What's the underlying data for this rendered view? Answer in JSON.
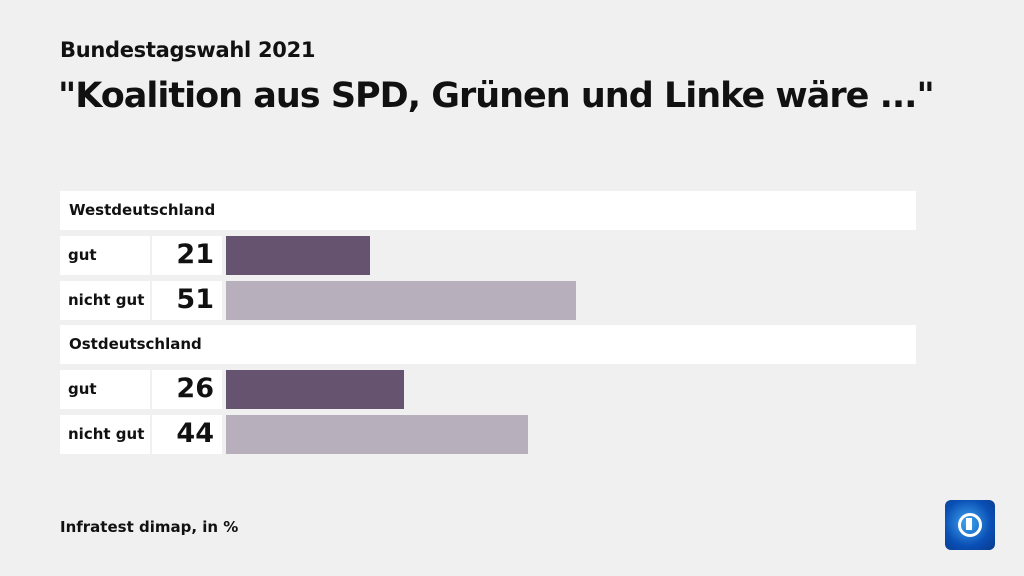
{
  "subtitle": "Bundestagswahl 2021",
  "title": "\"Koalition aus SPD, Grünen und Linke wäre ...\"",
  "source": "Infratest dimap, in %",
  "colors": {
    "gut": "#66536f",
    "nicht_gut": "#b7afbb",
    "background": "#f0f0f0"
  },
  "logo": "tagesschau-logo-icon",
  "chart_data": {
    "type": "bar",
    "orientation": "horizontal",
    "xlim": [
      0,
      100
    ],
    "unit": "%",
    "groups": [
      {
        "name": "Westdeutschland",
        "bars": [
          {
            "label": "gut",
            "value": 21
          },
          {
            "label": "nicht gut",
            "value": 51
          }
        ]
      },
      {
        "name": "Ostdeutschland",
        "bars": [
          {
            "label": "gut",
            "value": 26
          },
          {
            "label": "nicht gut",
            "value": 44
          }
        ]
      }
    ]
  }
}
